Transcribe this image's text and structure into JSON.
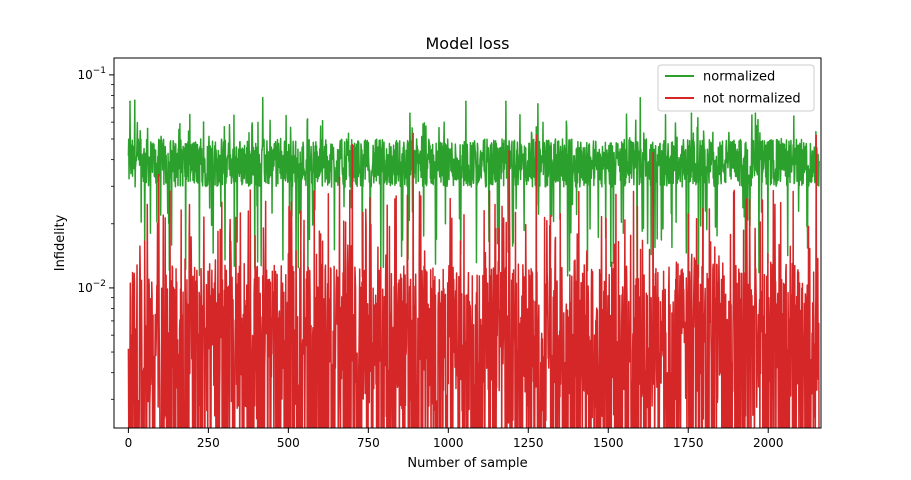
{
  "chart_data": {
    "type": "line",
    "title": "Model loss",
    "xlabel": "Number of sample",
    "ylabel": "Infidelity",
    "y_scale": "log",
    "xlim": [
      -45,
      2165
    ],
    "ylim": [
      0.0022,
      0.12
    ],
    "x_ticks": [
      0,
      250,
      500,
      750,
      1000,
      1250,
      1500,
      1750,
      2000
    ],
    "x_tick_labels": [
      "0",
      "250",
      "500",
      "750",
      "1000",
      "1250",
      "1500",
      "1750",
      "2000"
    ],
    "y_major_ticks": [
      0.01,
      0.1
    ],
    "y_major_tick_text": [
      {
        "base": "10",
        "exp": "−2"
      },
      {
        "base": "10",
        "exp": "−1"
      }
    ],
    "y_minor_ticks": [
      0.003,
      0.004,
      0.005,
      0.006,
      0.007,
      0.008,
      0.009,
      0.02,
      0.03,
      0.04,
      0.05,
      0.06,
      0.07,
      0.08,
      0.09
    ],
    "n_samples": 2160,
    "legend": {
      "position": "upper-right"
    },
    "grid": false,
    "series": [
      {
        "name": "normalized",
        "color": "#2ca02c",
        "typical_range": [
          0.025,
          0.05
        ],
        "spikes": [
          {
            "x": 5,
            "y": 0.075
          },
          {
            "x": 20,
            "y": 0.076
          },
          {
            "x": 60,
            "y": 0.056
          },
          {
            "x": 235,
            "y": 0.06
          },
          {
            "x": 300,
            "y": 0.057
          },
          {
            "x": 420,
            "y": 0.078
          },
          {
            "x": 560,
            "y": 0.062
          },
          {
            "x": 880,
            "y": 0.066
          },
          {
            "x": 1055,
            "y": 0.075
          },
          {
            "x": 1180,
            "y": 0.075
          },
          {
            "x": 1280,
            "y": 0.073
          },
          {
            "x": 1600,
            "y": 0.078
          },
          {
            "x": 1760,
            "y": 0.066
          },
          {
            "x": 1960,
            "y": 0.066
          },
          {
            "x": 2080,
            "y": 0.064
          }
        ]
      },
      {
        "name": "not normalized",
        "color": "#d62728",
        "typical_range": [
          0.0022,
          0.013
        ],
        "spikes": [
          {
            "x": 95,
            "y": 0.034
          },
          {
            "x": 660,
            "y": 0.033
          },
          {
            "x": 700,
            "y": 0.047
          },
          {
            "x": 890,
            "y": 0.053
          },
          {
            "x": 1190,
            "y": 0.044
          },
          {
            "x": 1275,
            "y": 0.052
          },
          {
            "x": 1640,
            "y": 0.043
          },
          {
            "x": 2150,
            "y": 0.052
          }
        ]
      }
    ]
  }
}
